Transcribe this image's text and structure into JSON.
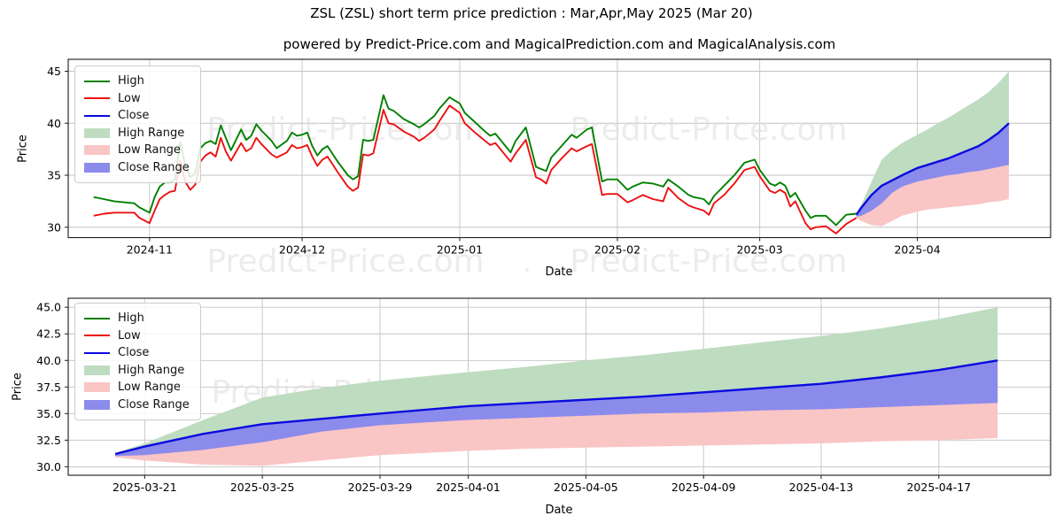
{
  "title": "ZSL (ZSL) short term price prediction : Mar,Apr,May 2025 (Mar 20)",
  "subtitle": "powered by Predict-Price.com and MagicalPrediction.com and MagicalAnalysis.com",
  "watermark": {
    "text": "Predict-Price.com",
    "separator": "."
  },
  "colors": {
    "high_line": "#008000",
    "low_line": "#ec1010",
    "close_line": "#0b0bdf",
    "high_range_fill": "#bedcc0",
    "low_range_fill": "#f9c5c5",
    "close_range_fill": "#8b8bec",
    "grid": "#c3c3c3",
    "frame": "#1a1a1a",
    "watermark": "#dedede"
  },
  "chart_data": [
    {
      "id": "top",
      "type": "line",
      "title": "",
      "xlabel": "Date",
      "ylabel": "Price",
      "x_unit": "days since 2024-10-16",
      "xlim": [
        0,
        193.2
      ],
      "ylim": [
        29.0,
        46.15
      ],
      "grid": true,
      "legend_position": "upper-left",
      "draw_history": true,
      "yticks": [
        {
          "v": 30,
          "label": "30"
        },
        {
          "v": 35,
          "label": "35"
        },
        {
          "v": 40,
          "label": "40"
        },
        {
          "v": 45,
          "label": "45"
        }
      ],
      "xticks": [
        {
          "v": 16,
          "label": "2024-11"
        },
        {
          "v": 46,
          "label": "2024-12"
        },
        {
          "v": 77,
          "label": "2025-01"
        },
        {
          "v": 108,
          "label": "2025-02"
        },
        {
          "v": 136,
          "label": "2025-03"
        },
        {
          "v": 167,
          "label": "2025-04"
        }
      ],
      "legend": [
        {
          "label": "High",
          "swatch": "line",
          "color": "#008000"
        },
        {
          "label": "Low",
          "swatch": "line",
          "color": "#ec1010"
        },
        {
          "label": "Close",
          "swatch": "line",
          "color": "#0b0bdf"
        },
        {
          "label": "High Range",
          "swatch": "patch",
          "color": "#bedcc0"
        },
        {
          "label": "Low Range",
          "swatch": "patch",
          "color": "#f9c5c5"
        },
        {
          "label": "Close Range",
          "swatch": "patch",
          "color": "#8b8bec"
        }
      ]
    },
    {
      "id": "bottom",
      "type": "line",
      "title": "",
      "xlabel": "Date",
      "ylabel": "Price",
      "x_unit": "days since 2024-10-16",
      "xlim": [
        153.4,
        186.8
      ],
      "ylim": [
        29.2,
        45.85
      ],
      "grid": true,
      "legend_position": "upper-left",
      "draw_history": false,
      "yticks": [
        {
          "v": 30,
          "label": "30.0"
        },
        {
          "v": 32.5,
          "label": "32.5"
        },
        {
          "v": 35,
          "label": "35.0"
        },
        {
          "v": 37.5,
          "label": "37.5"
        },
        {
          "v": 40,
          "label": "40.0"
        },
        {
          "v": 42.5,
          "label": "42.5"
        },
        {
          "v": 45,
          "label": "45.0"
        }
      ],
      "xticks": [
        {
          "v": 156,
          "label": "2025-03-21"
        },
        {
          "v": 160,
          "label": "2025-03-25"
        },
        {
          "v": 164,
          "label": "2025-03-29"
        },
        {
          "v": 167,
          "label": "2025-04-01"
        },
        {
          "v": 171,
          "label": "2025-04-05"
        },
        {
          "v": 175,
          "label": "2025-04-09"
        },
        {
          "v": 179,
          "label": "2025-04-13"
        },
        {
          "v": 183,
          "label": "2025-04-17"
        }
      ],
      "legend": [
        {
          "label": "High",
          "swatch": "line",
          "color": "#008000"
        },
        {
          "label": "Low",
          "swatch": "line",
          "color": "#ec1010"
        },
        {
          "label": "Close",
          "swatch": "line",
          "color": "#0b0bdf"
        },
        {
          "label": "High Range",
          "swatch": "patch",
          "color": "#bedcc0"
        },
        {
          "label": "Low Range",
          "swatch": "patch",
          "color": "#f9c5c5"
        },
        {
          "label": "Close Range",
          "swatch": "patch",
          "color": "#8b8bec"
        }
      ]
    }
  ],
  "series": {
    "history_day_high_low": [
      [
        5,
        32.9,
        31.1
      ],
      [
        7,
        32.7,
        31.3
      ],
      [
        9,
        32.5,
        31.4
      ],
      [
        11,
        32.4,
        31.4
      ],
      [
        13,
        32.3,
        31.4
      ],
      [
        14,
        31.9,
        30.9
      ],
      [
        16,
        31.4,
        30.4
      ],
      [
        17,
        32.9,
        31.6
      ],
      [
        18,
        33.9,
        32.7
      ],
      [
        19,
        34.3,
        33.1
      ],
      [
        20,
        34.3,
        33.4
      ],
      [
        21,
        34.6,
        33.5
      ],
      [
        22,
        38.2,
        36.4
      ],
      [
        23,
        36.0,
        34.4
      ],
      [
        24,
        34.8,
        33.6
      ],
      [
        25,
        35.2,
        34.1
      ],
      [
        26,
        37.6,
        36.3
      ],
      [
        27,
        38.1,
        36.9
      ],
      [
        28,
        38.3,
        37.2
      ],
      [
        29,
        38.0,
        36.8
      ],
      [
        30,
        39.8,
        38.6
      ],
      [
        31,
        38.6,
        37.3
      ],
      [
        32,
        37.4,
        36.4
      ],
      [
        34,
        39.4,
        38.1
      ],
      [
        35,
        38.4,
        37.3
      ],
      [
        36,
        38.8,
        37.6
      ],
      [
        37,
        39.9,
        38.6
      ],
      [
        38,
        39.3,
        38.0
      ],
      [
        40,
        38.3,
        37.0
      ],
      [
        41,
        37.6,
        36.7
      ],
      [
        43,
        38.3,
        37.2
      ],
      [
        44,
        39.1,
        37.9
      ],
      [
        45,
        38.8,
        37.6
      ],
      [
        46,
        38.9,
        37.7
      ],
      [
        47,
        39.1,
        37.9
      ],
      [
        48,
        37.8,
        36.8
      ],
      [
        49,
        36.9,
        35.9
      ],
      [
        50,
        37.5,
        36.5
      ],
      [
        51,
        37.8,
        36.8
      ],
      [
        53,
        36.3,
        35.3
      ],
      [
        55,
        35.0,
        33.9
      ],
      [
        56,
        34.6,
        33.5
      ],
      [
        57,
        34.9,
        33.8
      ],
      [
        58,
        38.4,
        37.0
      ],
      [
        59,
        38.3,
        36.9
      ],
      [
        60,
        38.4,
        37.1
      ],
      [
        62,
        42.7,
        41.3
      ],
      [
        63,
        41.4,
        40.0
      ],
      [
        64,
        41.2,
        39.9
      ],
      [
        66,
        40.4,
        39.2
      ],
      [
        68,
        39.9,
        38.7
      ],
      [
        69,
        39.6,
        38.3
      ],
      [
        70,
        39.9,
        38.6
      ],
      [
        72,
        40.7,
        39.4
      ],
      [
        73,
        41.4,
        40.2
      ],
      [
        75,
        42.5,
        41.7
      ],
      [
        77,
        41.9,
        41.0
      ],
      [
        78,
        41.0,
        40.0
      ],
      [
        80,
        40.1,
        39.1
      ],
      [
        82,
        39.2,
        38.3
      ],
      [
        83,
        38.8,
        37.9
      ],
      [
        84,
        39.0,
        38.1
      ],
      [
        86,
        37.8,
        36.9
      ],
      [
        87,
        37.2,
        36.3
      ],
      [
        88,
        38.3,
        37.1
      ],
      [
        90,
        39.6,
        38.4
      ],
      [
        92,
        35.8,
        34.8
      ],
      [
        93,
        35.6,
        34.6
      ],
      [
        94,
        35.4,
        34.2
      ],
      [
        95,
        36.7,
        35.5
      ],
      [
        97,
        37.8,
        36.6
      ],
      [
        99,
        38.9,
        37.6
      ],
      [
        100,
        38.6,
        37.3
      ],
      [
        102,
        39.4,
        37.8
      ],
      [
        103,
        39.6,
        38.0
      ],
      [
        105,
        34.4,
        33.1
      ],
      [
        106,
        34.6,
        33.2
      ],
      [
        108,
        34.6,
        33.2
      ],
      [
        110,
        33.6,
        32.4
      ],
      [
        111,
        33.9,
        32.6
      ],
      [
        113,
        34.3,
        33.1
      ],
      [
        115,
        34.2,
        32.7
      ],
      [
        117,
        33.9,
        32.5
      ],
      [
        118,
        34.6,
        33.8
      ],
      [
        120,
        33.9,
        32.8
      ],
      [
        122,
        33.1,
        32.1
      ],
      [
        123,
        32.9,
        31.9
      ],
      [
        125,
        32.7,
        31.6
      ],
      [
        126,
        32.2,
        31.2
      ],
      [
        127,
        33.0,
        32.3
      ],
      [
        129,
        34.0,
        33.1
      ],
      [
        131,
        35.0,
        34.2
      ],
      [
        133,
        36.2,
        35.5
      ],
      [
        135,
        36.5,
        35.8
      ],
      [
        136,
        35.5,
        34.9
      ],
      [
        138,
        34.2,
        33.5
      ],
      [
        139,
        34.0,
        33.3
      ],
      [
        140,
        34.3,
        33.6
      ],
      [
        141,
        34.0,
        33.3
      ],
      [
        142,
        32.9,
        32.0
      ],
      [
        143,
        33.3,
        32.5
      ],
      [
        145,
        31.6,
        30.4
      ],
      [
        146,
        30.9,
        29.8
      ],
      [
        147,
        31.1,
        30.0
      ],
      [
        149,
        31.1,
        30.1
      ],
      [
        151,
        30.2,
        29.4
      ],
      [
        153,
        31.2,
        30.3
      ],
      [
        155,
        31.3,
        30.9
      ]
    ],
    "prediction_day_close_hightop_closebottom_lowbottom": [
      [
        155,
        31.2,
        31.3,
        31.0,
        30.9
      ],
      [
        156,
        31.9,
        32.2,
        31.1,
        30.6
      ],
      [
        158,
        33.1,
        34.4,
        31.6,
        30.2
      ],
      [
        160,
        34.0,
        36.5,
        32.3,
        30.1
      ],
      [
        162,
        34.5,
        37.4,
        33.3,
        30.6
      ],
      [
        164,
        35.0,
        38.1,
        33.9,
        31.1
      ],
      [
        167,
        35.7,
        38.9,
        34.4,
        31.5
      ],
      [
        169,
        36.0,
        39.4,
        34.6,
        31.7
      ],
      [
        171,
        36.3,
        40.0,
        34.8,
        31.8
      ],
      [
        173,
        36.6,
        40.5,
        35.0,
        31.9
      ],
      [
        175,
        37.0,
        41.1,
        35.1,
        32.0
      ],
      [
        177,
        37.4,
        41.7,
        35.3,
        32.1
      ],
      [
        179,
        37.8,
        42.3,
        35.4,
        32.2
      ],
      [
        181,
        38.4,
        43.0,
        35.6,
        32.4
      ],
      [
        183,
        39.1,
        43.9,
        35.8,
        32.5
      ],
      [
        185,
        40.0,
        45.0,
        36.0,
        32.7
      ]
    ]
  }
}
